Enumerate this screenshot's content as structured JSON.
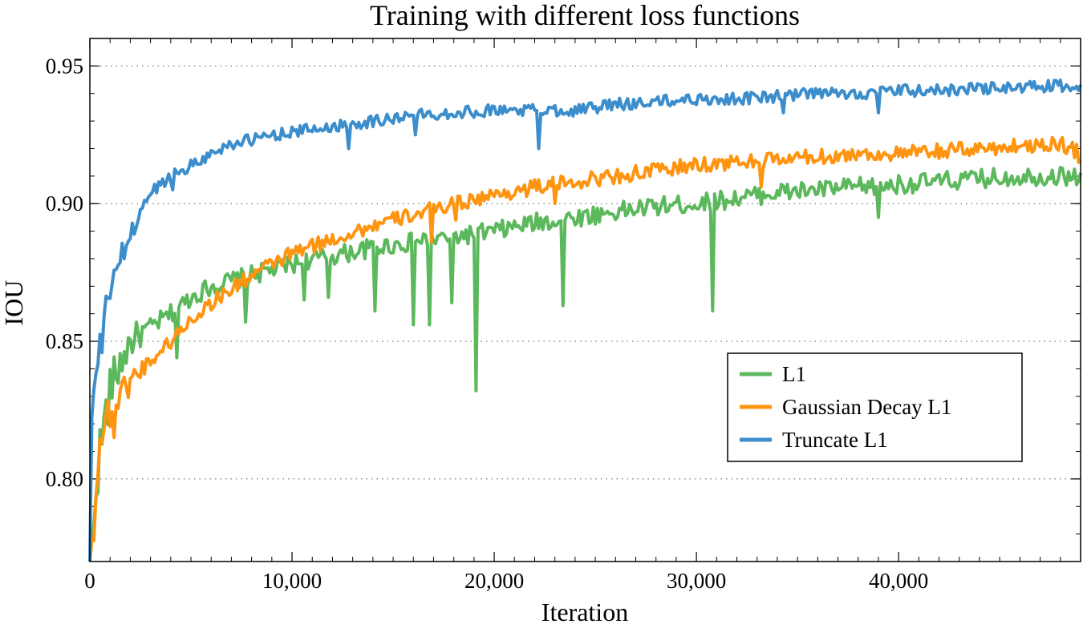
{
  "chart_data": {
    "type": "line",
    "title": "Training with different loss functions",
    "xlabel": "Iteration",
    "ylabel": "IOU",
    "xlim": [
      0,
      49000
    ],
    "ylim": [
      0.77,
      0.96
    ],
    "xticks": [
      0,
      10000,
      20000,
      30000,
      40000
    ],
    "xtick_labels": [
      "0",
      "10,000",
      "20,000",
      "30,000",
      "40,000"
    ],
    "yticks": [
      0.8,
      0.85,
      0.9,
      0.95
    ],
    "ytick_labels": [
      "0.80",
      "0.85",
      "0.90",
      "0.95"
    ],
    "grid": "horizontal-dotted",
    "legend_position": "lower-right",
    "series": [
      {
        "name": "L1",
        "color": "#5cb85c",
        "points": [
          [
            0,
            0.77
          ],
          [
            150,
            0.775
          ],
          [
            300,
            0.8
          ],
          [
            600,
            0.815
          ],
          [
            1000,
            0.832
          ],
          [
            1500,
            0.842
          ],
          [
            2000,
            0.85
          ],
          [
            3000,
            0.855
          ],
          [
            4000,
            0.86
          ],
          [
            5000,
            0.866
          ],
          [
            6000,
            0.87
          ],
          [
            7000,
            0.872
          ],
          [
            8000,
            0.874
          ],
          [
            9000,
            0.876
          ],
          [
            10000,
            0.878
          ],
          [
            12000,
            0.881
          ],
          [
            14000,
            0.884
          ],
          [
            16000,
            0.886
          ],
          [
            18000,
            0.888
          ],
          [
            20000,
            0.89
          ],
          [
            22000,
            0.893
          ],
          [
            24000,
            0.895
          ],
          [
            26000,
            0.897
          ],
          [
            28000,
            0.899
          ],
          [
            30000,
            0.9
          ],
          [
            32000,
            0.902
          ],
          [
            34000,
            0.904
          ],
          [
            36000,
            0.905
          ],
          [
            38000,
            0.906
          ],
          [
            40000,
            0.907
          ],
          [
            42000,
            0.908
          ],
          [
            44000,
            0.909
          ],
          [
            46000,
            0.91
          ],
          [
            48000,
            0.91
          ],
          [
            49000,
            0.91
          ]
        ],
        "spikes": [
          [
            4300,
            0.844
          ],
          [
            7700,
            0.857
          ],
          [
            10600,
            0.865
          ],
          [
            11800,
            0.866
          ],
          [
            14100,
            0.861
          ],
          [
            16000,
            0.856
          ],
          [
            16800,
            0.856
          ],
          [
            17900,
            0.864
          ],
          [
            19100,
            0.832
          ],
          [
            23400,
            0.863
          ],
          [
            30800,
            0.861
          ],
          [
            33500,
            0.903
          ],
          [
            39000,
            0.895
          ]
        ]
      },
      {
        "name": "Gaussian Decay L1",
        "color": "#ff9410",
        "points": [
          [
            0,
            0.77
          ],
          [
            150,
            0.778
          ],
          [
            300,
            0.8
          ],
          [
            600,
            0.817
          ],
          [
            1000,
            0.825
          ],
          [
            1500,
            0.83
          ],
          [
            2000,
            0.836
          ],
          [
            3000,
            0.843
          ],
          [
            4000,
            0.85
          ],
          [
            5000,
            0.858
          ],
          [
            6000,
            0.864
          ],
          [
            7000,
            0.869
          ],
          [
            8000,
            0.874
          ],
          [
            9000,
            0.878
          ],
          [
            10000,
            0.882
          ],
          [
            12000,
            0.887
          ],
          [
            14000,
            0.892
          ],
          [
            16000,
            0.896
          ],
          [
            18000,
            0.9
          ],
          [
            20000,
            0.903
          ],
          [
            22000,
            0.906
          ],
          [
            24000,
            0.908
          ],
          [
            26000,
            0.91
          ],
          [
            28000,
            0.912
          ],
          [
            30000,
            0.914
          ],
          [
            32000,
            0.915
          ],
          [
            34000,
            0.916
          ],
          [
            36000,
            0.917
          ],
          [
            38000,
            0.918
          ],
          [
            40000,
            0.918
          ],
          [
            42000,
            0.919
          ],
          [
            44000,
            0.92
          ],
          [
            46000,
            0.921
          ],
          [
            48000,
            0.922
          ],
          [
            49000,
            0.918
          ]
        ],
        "spikes": [
          [
            1200,
            0.815
          ],
          [
            16900,
            0.886
          ],
          [
            18100,
            0.894
          ],
          [
            23000,
            0.9
          ],
          [
            33200,
            0.906
          ],
          [
            48900,
            0.915
          ]
        ]
      },
      {
        "name": "Truncate L1",
        "color": "#3b8ecb",
        "points": [
          [
            0,
            0.77
          ],
          [
            100,
            0.822
          ],
          [
            300,
            0.838
          ],
          [
            600,
            0.85
          ],
          [
            900,
            0.866
          ],
          [
            1200,
            0.876
          ],
          [
            1600,
            0.881
          ],
          [
            2000,
            0.888
          ],
          [
            2500,
            0.897
          ],
          [
            3000,
            0.904
          ],
          [
            4000,
            0.91
          ],
          [
            5000,
            0.914
          ],
          [
            6000,
            0.918
          ],
          [
            7000,
            0.922
          ],
          [
            8000,
            0.923
          ],
          [
            9000,
            0.925
          ],
          [
            10000,
            0.926
          ],
          [
            12000,
            0.928
          ],
          [
            14000,
            0.93
          ],
          [
            16000,
            0.932
          ],
          [
            18000,
            0.933
          ],
          [
            20000,
            0.934
          ],
          [
            22000,
            0.934
          ],
          [
            24000,
            0.934
          ],
          [
            26000,
            0.936
          ],
          [
            28000,
            0.937
          ],
          [
            30000,
            0.938
          ],
          [
            32000,
            0.938
          ],
          [
            34000,
            0.939
          ],
          [
            36000,
            0.94
          ],
          [
            38000,
            0.94
          ],
          [
            40000,
            0.941
          ],
          [
            42000,
            0.941
          ],
          [
            44000,
            0.942
          ],
          [
            46000,
            0.942
          ],
          [
            48000,
            0.943
          ],
          [
            49000,
            0.941
          ]
        ],
        "spikes": [
          [
            4100,
            0.905
          ],
          [
            12800,
            0.92
          ],
          [
            16100,
            0.925
          ],
          [
            22200,
            0.92
          ],
          [
            34300,
            0.933
          ],
          [
            39000,
            0.933
          ]
        ]
      }
    ]
  }
}
